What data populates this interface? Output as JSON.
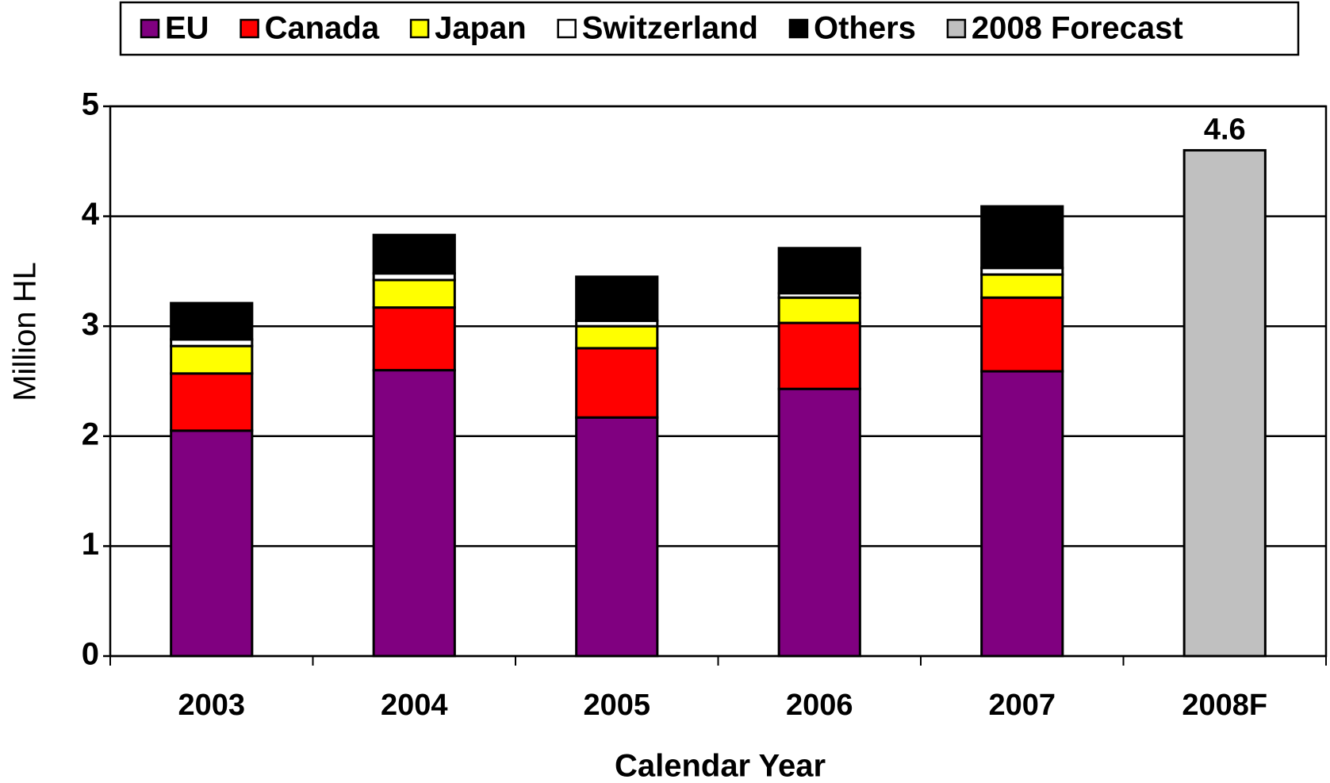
{
  "chart_data": {
    "type": "stacked_bar",
    "categories": [
      "2003",
      "2004",
      "2005",
      "2006",
      "2007",
      "2008F"
    ],
    "series": [
      {
        "name": "EU",
        "color": "#800080",
        "values": [
          2.05,
          2.6,
          2.17,
          2.43,
          2.59,
          null
        ]
      },
      {
        "name": "Canada",
        "color": "#ff0000",
        "values": [
          0.52,
          0.57,
          0.63,
          0.6,
          0.67,
          null
        ]
      },
      {
        "name": "Japan",
        "color": "#ffff00",
        "values": [
          0.25,
          0.25,
          0.2,
          0.23,
          0.21,
          null
        ]
      },
      {
        "name": "Switzerland",
        "color": "#ffffff",
        "values": [
          0.06,
          0.06,
          0.05,
          0.04,
          0.06,
          null
        ]
      },
      {
        "name": "Others",
        "color": "#000000",
        "values": [
          0.33,
          0.35,
          0.4,
          0.41,
          0.56,
          null
        ]
      },
      {
        "name": "2008 Forecast",
        "color": "#c0c0c0",
        "values": [
          null,
          null,
          null,
          null,
          null,
          4.6
        ]
      }
    ],
    "data_labels_series": 5,
    "y_axis_label": "Million HL",
    "x_axis_label": "Calendar Year",
    "ylim": [
      0,
      5
    ],
    "yticks": [
      0,
      1,
      2,
      3,
      4,
      5
    ],
    "grid": true,
    "legend": "top"
  }
}
